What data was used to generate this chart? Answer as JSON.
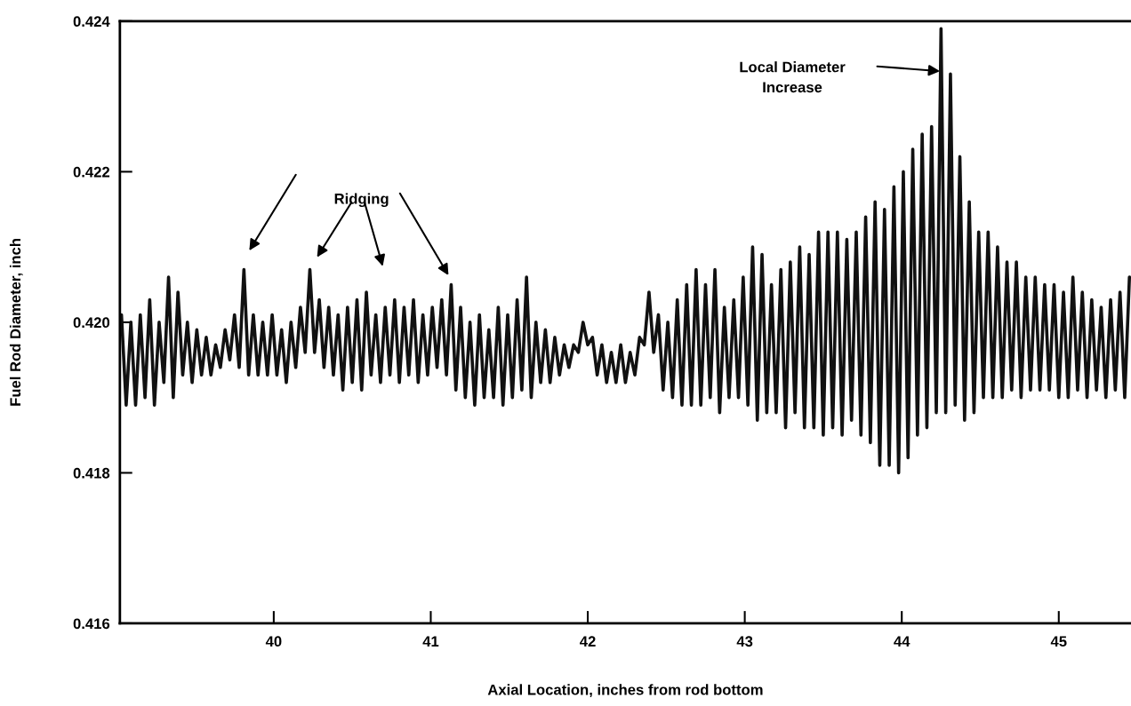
{
  "chart_data": {
    "type": "line",
    "xlabel": "Axial Location, inches from rod bottom",
    "ylabel": "Fuel Rod Diameter, inch",
    "xlim": [
      39.02,
      45.46
    ],
    "ylim": [
      0.416,
      0.424
    ],
    "xticks": [
      40,
      41,
      42,
      43,
      44,
      45
    ],
    "yticks": [
      {
        "value": 0.416,
        "label": "0.416"
      },
      {
        "value": 0.418,
        "label": "0.418"
      },
      {
        "value": 0.42,
        "label": "0.420"
      },
      {
        "value": 0.422,
        "label": "0.422"
      },
      {
        "value": 0.424,
        "label": "0.424"
      }
    ],
    "grid": false,
    "legend": false,
    "marker": "none",
    "line_style": "solid",
    "annotations": [
      "Ridging",
      "Local Diameter\nIncrease"
    ],
    "series": [
      {
        "color": "#111111",
        "x": [
          39.03,
          39.06,
          39.09,
          39.12,
          39.15,
          39.18,
          39.21,
          39.24,
          39.27,
          39.3,
          39.33,
          39.36,
          39.39,
          39.42,
          39.45,
          39.48,
          39.51,
          39.54,
          39.57,
          39.6,
          39.63,
          39.66,
          39.69,
          39.72,
          39.75,
          39.78,
          39.81,
          39.84,
          39.87,
          39.9,
          39.93,
          39.96,
          39.99,
          40.02,
          40.05,
          40.08,
          40.11,
          40.14,
          40.17,
          40.2,
          40.23,
          40.26,
          40.29,
          40.32,
          40.35,
          40.38,
          40.41,
          40.44,
          40.47,
          40.5,
          40.53,
          40.56,
          40.59,
          40.62,
          40.65,
          40.68,
          40.71,
          40.74,
          40.77,
          40.8,
          40.83,
          40.86,
          40.89,
          40.92,
          40.95,
          40.98,
          41.01,
          41.04,
          41.07,
          41.1,
          41.13,
          41.16,
          41.19,
          41.22,
          41.25,
          41.28,
          41.31,
          41.34,
          41.37,
          41.4,
          41.43,
          41.46,
          41.49,
          41.52,
          41.55,
          41.58,
          41.61,
          41.64,
          41.67,
          41.7,
          41.73,
          41.76,
          41.79,
          41.82,
          41.85,
          41.88,
          41.91,
          41.94,
          41.97,
          42.0,
          42.03,
          42.06,
          42.09,
          42.12,
          42.15,
          42.18,
          42.21,
          42.24,
          42.27,
          42.3,
          42.33,
          42.36,
          42.39,
          42.42,
          42.45,
          42.48,
          42.51,
          42.54,
          42.57,
          42.6,
          42.63,
          42.66,
          42.69,
          42.72,
          42.75,
          42.78,
          42.81,
          42.84,
          42.87,
          42.9,
          42.93,
          42.96,
          42.99,
          43.02,
          43.05,
          43.08,
          43.11,
          43.14,
          43.17,
          43.2,
          43.23,
          43.26,
          43.29,
          43.32,
          43.35,
          43.38,
          43.41,
          43.44,
          43.47,
          43.5,
          43.53,
          43.56,
          43.59,
          43.62,
          43.65,
          43.68,
          43.71,
          43.74,
          43.77,
          43.8,
          43.83,
          43.86,
          43.89,
          43.92,
          43.95,
          43.98,
          44.01,
          44.04,
          44.07,
          44.1,
          44.13,
          44.16,
          44.19,
          44.22,
          44.25,
          44.28,
          44.31,
          44.34,
          44.37,
          44.4,
          44.43,
          44.46,
          44.49,
          44.52,
          44.55,
          44.58,
          44.61,
          44.64,
          44.67,
          44.7,
          44.73,
          44.76,
          44.79,
          44.82,
          44.85,
          44.88,
          44.91,
          44.94,
          44.97,
          45.0,
          45.03,
          45.06,
          45.09,
          45.12,
          45.15,
          45.18,
          45.21,
          45.24,
          45.27,
          45.3,
          45.33,
          45.36,
          45.39,
          45.42,
          45.45
        ],
        "values": [
          0.4201,
          0.4189,
          0.42,
          0.4189,
          0.4201,
          0.419,
          0.4203,
          0.4189,
          0.42,
          0.4192,
          0.4206,
          0.419,
          0.4204,
          0.4193,
          0.42,
          0.4192,
          0.4199,
          0.4193,
          0.4198,
          0.4193,
          0.4197,
          0.4194,
          0.4199,
          0.4195,
          0.4201,
          0.4194,
          0.4207,
          0.4193,
          0.4201,
          0.4193,
          0.42,
          0.4193,
          0.4201,
          0.4193,
          0.4199,
          0.4192,
          0.42,
          0.4194,
          0.4202,
          0.4196,
          0.4207,
          0.4196,
          0.4203,
          0.4194,
          0.4202,
          0.4193,
          0.4201,
          0.4191,
          0.4202,
          0.4192,
          0.4203,
          0.4191,
          0.4204,
          0.4193,
          0.4201,
          0.4192,
          0.4202,
          0.4193,
          0.4203,
          0.4192,
          0.4202,
          0.4193,
          0.4203,
          0.4192,
          0.4201,
          0.4193,
          0.4202,
          0.4194,
          0.4203,
          0.4193,
          0.4205,
          0.4191,
          0.4202,
          0.419,
          0.42,
          0.4189,
          0.4201,
          0.419,
          0.4199,
          0.419,
          0.4202,
          0.4189,
          0.4201,
          0.419,
          0.4203,
          0.4191,
          0.4206,
          0.419,
          0.42,
          0.4192,
          0.4199,
          0.4192,
          0.4198,
          0.4193,
          0.4197,
          0.4194,
          0.4197,
          0.4196,
          0.42,
          0.4197,
          0.4198,
          0.4193,
          0.4197,
          0.4192,
          0.4196,
          0.4192,
          0.4197,
          0.4192,
          0.4196,
          0.4193,
          0.4198,
          0.4197,
          0.4204,
          0.4196,
          0.4201,
          0.4191,
          0.42,
          0.419,
          0.4203,
          0.4189,
          0.4205,
          0.4189,
          0.4207,
          0.4189,
          0.4205,
          0.419,
          0.4207,
          0.4188,
          0.4202,
          0.419,
          0.4203,
          0.419,
          0.4206,
          0.4189,
          0.421,
          0.4187,
          0.4209,
          0.4188,
          0.4205,
          0.4188,
          0.4207,
          0.4186,
          0.4208,
          0.4188,
          0.421,
          0.4186,
          0.4209,
          0.4186,
          0.4212,
          0.4185,
          0.4212,
          0.4186,
          0.4212,
          0.4185,
          0.4211,
          0.4187,
          0.4212,
          0.4185,
          0.4214,
          0.4184,
          0.4216,
          0.4181,
          0.4215,
          0.4181,
          0.4218,
          0.418,
          0.422,
          0.4182,
          0.4223,
          0.4185,
          0.4225,
          0.4186,
          0.4226,
          0.4188,
          0.4239,
          0.4188,
          0.4233,
          0.4189,
          0.4222,
          0.4187,
          0.4216,
          0.4188,
          0.4212,
          0.419,
          0.4212,
          0.419,
          0.421,
          0.419,
          0.4208,
          0.4191,
          0.4208,
          0.419,
          0.4206,
          0.4191,
          0.4206,
          0.4191,
          0.4205,
          0.4191,
          0.4205,
          0.419,
          0.4204,
          0.419,
          0.4206,
          0.4191,
          0.4204,
          0.419,
          0.4203,
          0.4191,
          0.4202,
          0.419,
          0.4203,
          0.4191,
          0.4204,
          0.419,
          0.4206
        ]
      }
    ]
  }
}
